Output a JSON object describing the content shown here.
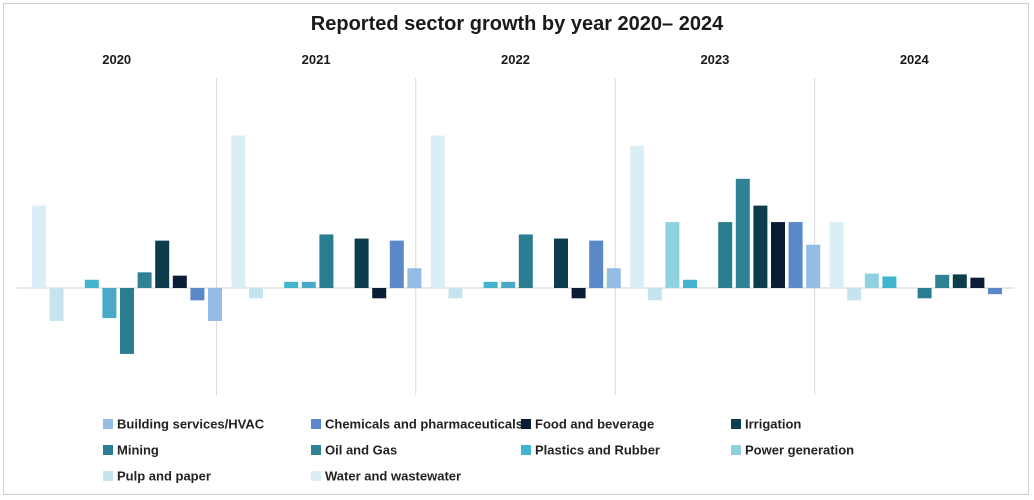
{
  "chart_data": {
    "type": "bar",
    "title": "Reported sector growth by year 2020–  2024",
    "panels": [
      "2020",
      "2021",
      "2022",
      "2023",
      "2024"
    ],
    "series": [
      {
        "name": "Water and wastewater",
        "color": "#daeef6",
        "values": [
          2.0,
          3.7,
          3.7,
          3.45,
          1.6
        ]
      },
      {
        "name": "Pulp and paper",
        "color": "#c6e4ef",
        "values": [
          -0.8,
          -0.25,
          -0.25,
          -0.3,
          -0.3
        ]
      },
      {
        "name": "Power generation",
        "color": "#8fd1df",
        "values": [
          null,
          null,
          null,
          1.6,
          0.35
        ]
      },
      {
        "name": "Plastics and Rubber",
        "color": "#43b4cd",
        "values": [
          0.2,
          0.15,
          0.15,
          0.2,
          0.28
        ]
      },
      {
        "name": "Oil and Gas",
        "color": "#4aa9c6",
        "values": [
          -0.73,
          0.15,
          0.15,
          null,
          null
        ]
      },
      {
        "name": "Mining",
        "color": "#2a7d91",
        "values": [
          -1.6,
          1.3,
          1.3,
          1.6,
          -0.25
        ]
      },
      {
        "name": "Oil and Gas",
        "color": "#2e8294",
        "values": [
          0.38,
          null,
          null,
          2.65,
          0.32
        ]
      },
      {
        "name": "Irrigation",
        "color": "#0d3d4d",
        "values": [
          1.15,
          1.2,
          1.2,
          2.0,
          0.33
        ]
      },
      {
        "name": "Food and beverage",
        "color": "#0a1c36",
        "values": [
          0.3,
          -0.25,
          -0.25,
          1.6,
          0.25
        ]
      },
      {
        "name": "Chemicals and pharmaceuticals",
        "color": "#5b88c8",
        "values": [
          -0.3,
          1.15,
          1.15,
          1.6,
          -0.15
        ]
      },
      {
        "name": "Building services/HVAC",
        "color": "#94bce4",
        "values": [
          -0.8,
          0.48,
          0.48,
          1.05,
          null
        ]
      }
    ],
    "legend": [
      {
        "name": "Building services/HVAC",
        "color": "#94bce4"
      },
      {
        "name": "Chemicals and pharmaceuticals",
        "color": "#5b88c8"
      },
      {
        "name": "Food and beverage",
        "color": "#0a1c36"
      },
      {
        "name": "Irrigation",
        "color": "#0d3d4d"
      },
      {
        "name": "Mining",
        "color": "#2a7d91"
      },
      {
        "name": "Oil and Gas",
        "color": "#2e8294"
      },
      {
        "name": "Plastics and Rubber",
        "color": "#43b4cd"
      },
      {
        "name": "Power generation",
        "color": "#8fd1df"
      },
      {
        "name": "Pulp and paper",
        "color": "#c6e4ef"
      },
      {
        "name": "Water and wastewater",
        "color": "#daeef6"
      }
    ],
    "legend_position": "bottom",
    "ylim": [
      -2.5,
      4.5
    ],
    "grid": false,
    "panel_dividers": true
  }
}
